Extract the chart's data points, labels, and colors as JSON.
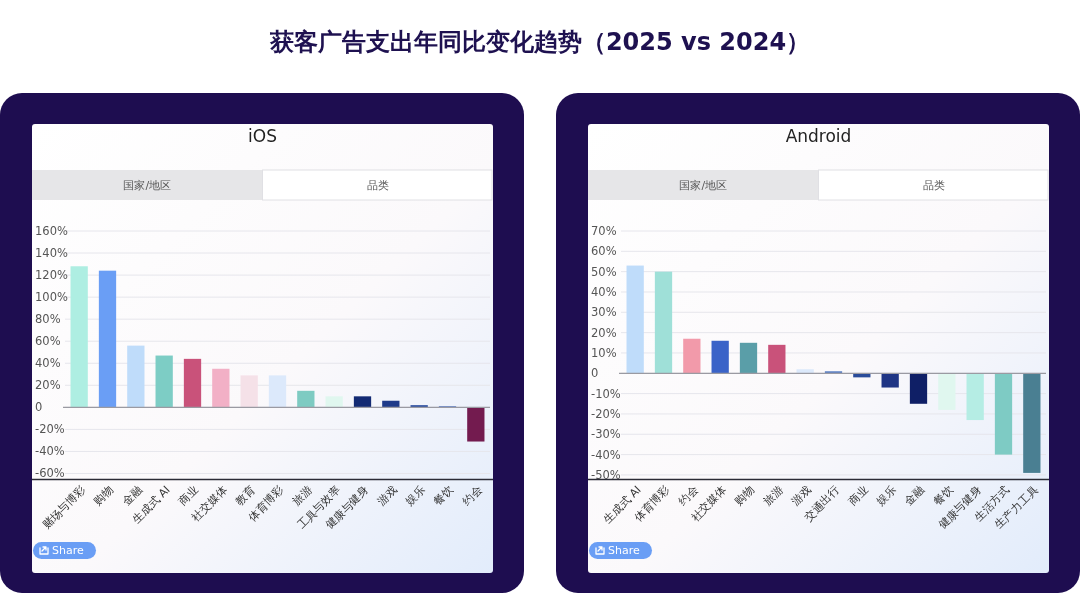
{
  "chart_data": [
    {
      "type": "other",
      "title": "获客广告支出年同比变化趋势（2025 vs 2024）"
    },
    {
      "type": "bar",
      "title": "iOS",
      "annotations": [
        "国家/地区",
        "品类",
        "Share"
      ],
      "categories": [
        "赌场与博彩",
        "购物",
        "金融",
        "生成式 AI",
        "商业",
        "社交媒体",
        "教育",
        "体育博彩",
        "旅游",
        "工具与效率",
        "健康与健身",
        "游戏",
        "娱乐",
        "餐饮",
        "约会"
      ],
      "values": [
        128,
        124,
        56,
        47,
        44,
        35,
        29,
        29,
        15,
        10,
        10,
        6,
        2,
        1,
        -31
      ],
      "colors": [
        "#aeeee2",
        "#6a9ef5",
        "#bfdcfa",
        "#7dcdc5",
        "#c9527a",
        "#f2b0c6",
        "#f5e1e8",
        "#dce9fb",
        "#7ecbc2",
        "#e0f7ef",
        "#132a73",
        "#1e3a8a",
        "#2d4fa0",
        "#4a6fc0",
        "#731b4f"
      ],
      "ylim": [
        -65,
        160
      ],
      "yticks": [
        {
          "value": -60,
          "label": "-60%"
        },
        {
          "value": -40,
          "label": "-40%"
        },
        {
          "value": -20,
          "label": "-20%"
        },
        0,
        {
          "value": 20,
          "label": "20%"
        },
        {
          "value": 40,
          "label": "40%"
        },
        {
          "value": 60,
          "label": "60%"
        },
        {
          "value": 80,
          "label": "80%"
        },
        {
          "value": 100,
          "label": "100%"
        },
        {
          "value": 120,
          "label": "120%"
        },
        {
          "value": 140,
          "label": "140%"
        },
        {
          "value": 160,
          "label": "160%"
        }
      ],
      "grid": "y"
    },
    {
      "type": "bar",
      "title": "Android",
      "annotations": [
        "国家/地区",
        "品类",
        "Share"
      ],
      "categories": [
        "生成式 AI",
        "体育博彩",
        "约会",
        "社交媒体",
        "购物",
        "旅游",
        "游戏",
        "交通出行",
        "商业",
        "娱乐",
        "金融",
        "餐饮",
        "健康与健身",
        "生活方式",
        "生产力工具"
      ],
      "values": [
        53,
        50,
        17,
        16,
        15,
        14,
        2,
        1,
        -2,
        -7,
        -15,
        -18,
        -23,
        -40,
        -49
      ],
      "colors": [
        "#bfdcfa",
        "#9fe0d8",
        "#f29aaa",
        "#3a63c8",
        "#5a9ea8",
        "#c9527a",
        "#dce9fb",
        "#5b7fc4",
        "#2a4c9a",
        "#1f3585",
        "#0f1f66",
        "#e0f7ef",
        "#b5ede4",
        "#7ecbc4",
        "#4a7f92"
      ],
      "ylim": [
        -52,
        70
      ],
      "yticks": [
        {
          "value": -50,
          "label": "-50%"
        },
        {
          "value": -40,
          "label": "-40%"
        },
        {
          "value": -30,
          "label": "-30%"
        },
        {
          "value": -20,
          "label": "-20%"
        },
        {
          "value": -10,
          "label": "-10%"
        },
        0,
        {
          "value": 10,
          "label": "10%"
        },
        {
          "value": 20,
          "label": "20%"
        },
        {
          "value": 30,
          "label": "30%"
        },
        {
          "value": 40,
          "label": "40%"
        },
        {
          "value": 50,
          "label": "50%"
        },
        {
          "value": 60,
          "label": "60%"
        },
        {
          "value": 70,
          "label": "70%"
        }
      ],
      "grid": "y"
    }
  ]
}
